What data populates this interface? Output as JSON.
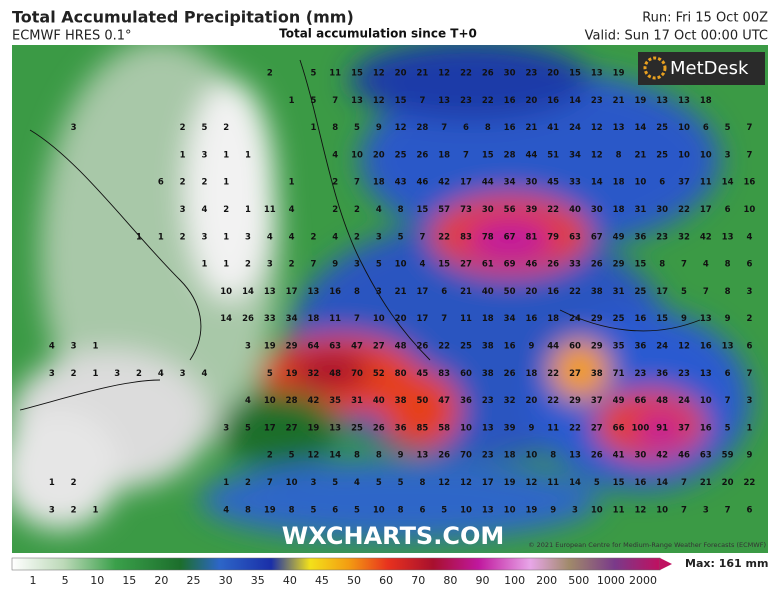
{
  "header": {
    "title": "Total Accumulated Precipitation (mm)",
    "model": "ECMWF HRES 0.1°",
    "subtitle": "Total accumulation since T+0",
    "run": "Run: Fri 15 Oct 00Z",
    "valid": "Valid: Sun 17 Oct 00:00 UTC"
  },
  "logo": "MetDesk",
  "watermark": "WXCHARTS.COM",
  "copyright": "© 2021 European Centre for Medium-Range Weather Forecasts (ECMWF)",
  "map": {
    "values": [
      [
        null,
        null,
        null,
        null,
        null,
        null,
        null,
        null,
        null,
        null,
        null,
        2,
        null,
        5,
        11,
        15,
        12,
        20,
        21,
        12,
        22,
        26,
        30,
        23,
        20,
        15,
        13,
        19
      ],
      [
        null,
        null,
        null,
        null,
        null,
        null,
        null,
        null,
        null,
        null,
        null,
        null,
        1,
        5,
        7,
        13,
        12,
        15,
        7,
        13,
        23,
        22,
        16,
        20,
        16,
        14,
        23,
        21,
        19,
        13,
        13,
        18
      ],
      [
        null,
        null,
        3,
        null,
        null,
        null,
        null,
        2,
        5,
        2,
        null,
        null,
        null,
        1,
        8,
        5,
        9,
        12,
        28,
        7,
        6,
        8,
        16,
        21,
        41,
        24,
        12,
        13,
        14,
        25,
        10,
        6,
        5,
        7
      ],
      [
        null,
        null,
        null,
        null,
        null,
        null,
        null,
        1,
        3,
        1,
        1,
        null,
        null,
        null,
        4,
        10,
        20,
        25,
        26,
        18,
        7,
        15,
        28,
        44,
        51,
        34,
        12,
        8,
        21,
        25,
        10,
        10,
        3,
        7
      ],
      [
        null,
        null,
        null,
        null,
        null,
        null,
        6,
        2,
        2,
        1,
        null,
        null,
        1,
        null,
        2,
        7,
        18,
        43,
        46,
        42,
        17,
        44,
        34,
        30,
        45,
        33,
        14,
        18,
        10,
        6,
        37,
        11,
        14,
        16
      ],
      [
        null,
        null,
        null,
        null,
        null,
        null,
        null,
        3,
        4,
        2,
        1,
        11,
        4,
        null,
        2,
        2,
        4,
        8,
        15,
        57,
        73,
        30,
        56,
        39,
        22,
        40,
        30,
        18,
        31,
        30,
        22,
        17,
        6,
        10
      ],
      [
        null,
        null,
        null,
        null,
        null,
        1,
        1,
        2,
        3,
        1,
        3,
        4,
        4,
        2,
        4,
        2,
        3,
        5,
        7,
        22,
        83,
        78,
        67,
        81,
        79,
        63,
        67,
        49,
        36,
        23,
        32,
        42,
        13,
        4
      ],
      [
        null,
        null,
        null,
        null,
        null,
        null,
        null,
        null,
        1,
        1,
        2,
        3,
        2,
        7,
        9,
        3,
        5,
        10,
        4,
        15,
        27,
        61,
        69,
        46,
        26,
        33,
        26,
        29,
        15,
        8,
        7,
        4,
        8,
        6
      ],
      [
        null,
        null,
        null,
        null,
        null,
        null,
        null,
        null,
        null,
        10,
        14,
        13,
        17,
        13,
        16,
        8,
        3,
        21,
        17,
        6,
        21,
        40,
        50,
        20,
        16,
        22,
        38,
        31,
        25,
        17,
        5,
        7,
        8,
        3
      ],
      [
        null,
        null,
        null,
        null,
        null,
        null,
        null,
        null,
        null,
        14,
        26,
        33,
        34,
        18,
        11,
        7,
        10,
        20,
        17,
        7,
        11,
        18,
        34,
        16,
        18,
        24,
        29,
        25,
        16,
        15,
        9,
        13,
        9,
        2
      ],
      [
        null,
        4,
        3,
        1,
        null,
        null,
        null,
        null,
        null,
        null,
        3,
        19,
        29,
        64,
        63,
        47,
        27,
        48,
        26,
        22,
        25,
        38,
        16,
        9,
        44,
        60,
        29,
        35,
        36,
        24,
        12,
        16,
        13,
        6
      ],
      [
        null,
        3,
        2,
        1,
        3,
        2,
        4,
        3,
        4,
        null,
        null,
        5,
        19,
        32,
        48,
        70,
        52,
        80,
        45,
        83,
        60,
        38,
        26,
        18,
        22,
        27,
        38,
        71,
        23,
        36,
        23,
        13,
        6,
        7
      ],
      [
        null,
        null,
        null,
        null,
        null,
        null,
        null,
        null,
        null,
        null,
        4,
        10,
        28,
        42,
        35,
        31,
        40,
        38,
        50,
        47,
        36,
        23,
        32,
        20,
        22,
        29,
        37,
        49,
        66,
        48,
        24,
        10,
        7,
        3
      ],
      [
        null,
        null,
        null,
        null,
        null,
        null,
        null,
        null,
        null,
        3,
        5,
        17,
        27,
        19,
        13,
        25,
        26,
        36,
        85,
        58,
        10,
        13,
        39,
        9,
        11,
        22,
        27,
        66,
        100,
        91,
        37,
        16,
        5,
        1
      ],
      [
        null,
        null,
        null,
        null,
        null,
        null,
        null,
        null,
        null,
        null,
        null,
        2,
        5,
        12,
        14,
        8,
        8,
        9,
        13,
        26,
        70,
        23,
        18,
        10,
        8,
        13,
        26,
        41,
        30,
        42,
        46,
        63,
        59,
        9
      ],
      [
        null,
        1,
        2,
        null,
        null,
        null,
        null,
        null,
        null,
        1,
        2,
        7,
        10,
        3,
        5,
        4,
        5,
        5,
        8,
        12,
        12,
        17,
        19,
        12,
        11,
        14,
        5,
        15,
        16,
        14,
        7,
        21,
        20,
        22
      ],
      [
        null,
        3,
        2,
        1,
        null,
        null,
        null,
        null,
        null,
        4,
        8,
        19,
        8,
        5,
        6,
        5,
        10,
        8,
        6,
        5,
        10,
        13,
        10,
        19,
        9,
        3,
        10,
        11,
        12,
        10,
        7,
        3,
        7,
        6
      ]
    ]
  },
  "legend": {
    "labels": [
      1,
      5,
      10,
      15,
      20,
      25,
      30,
      35,
      40,
      45,
      50,
      60,
      70,
      80,
      90,
      100,
      200,
      500,
      1000,
      2000
    ],
    "max": "Max: 161 mm"
  }
}
